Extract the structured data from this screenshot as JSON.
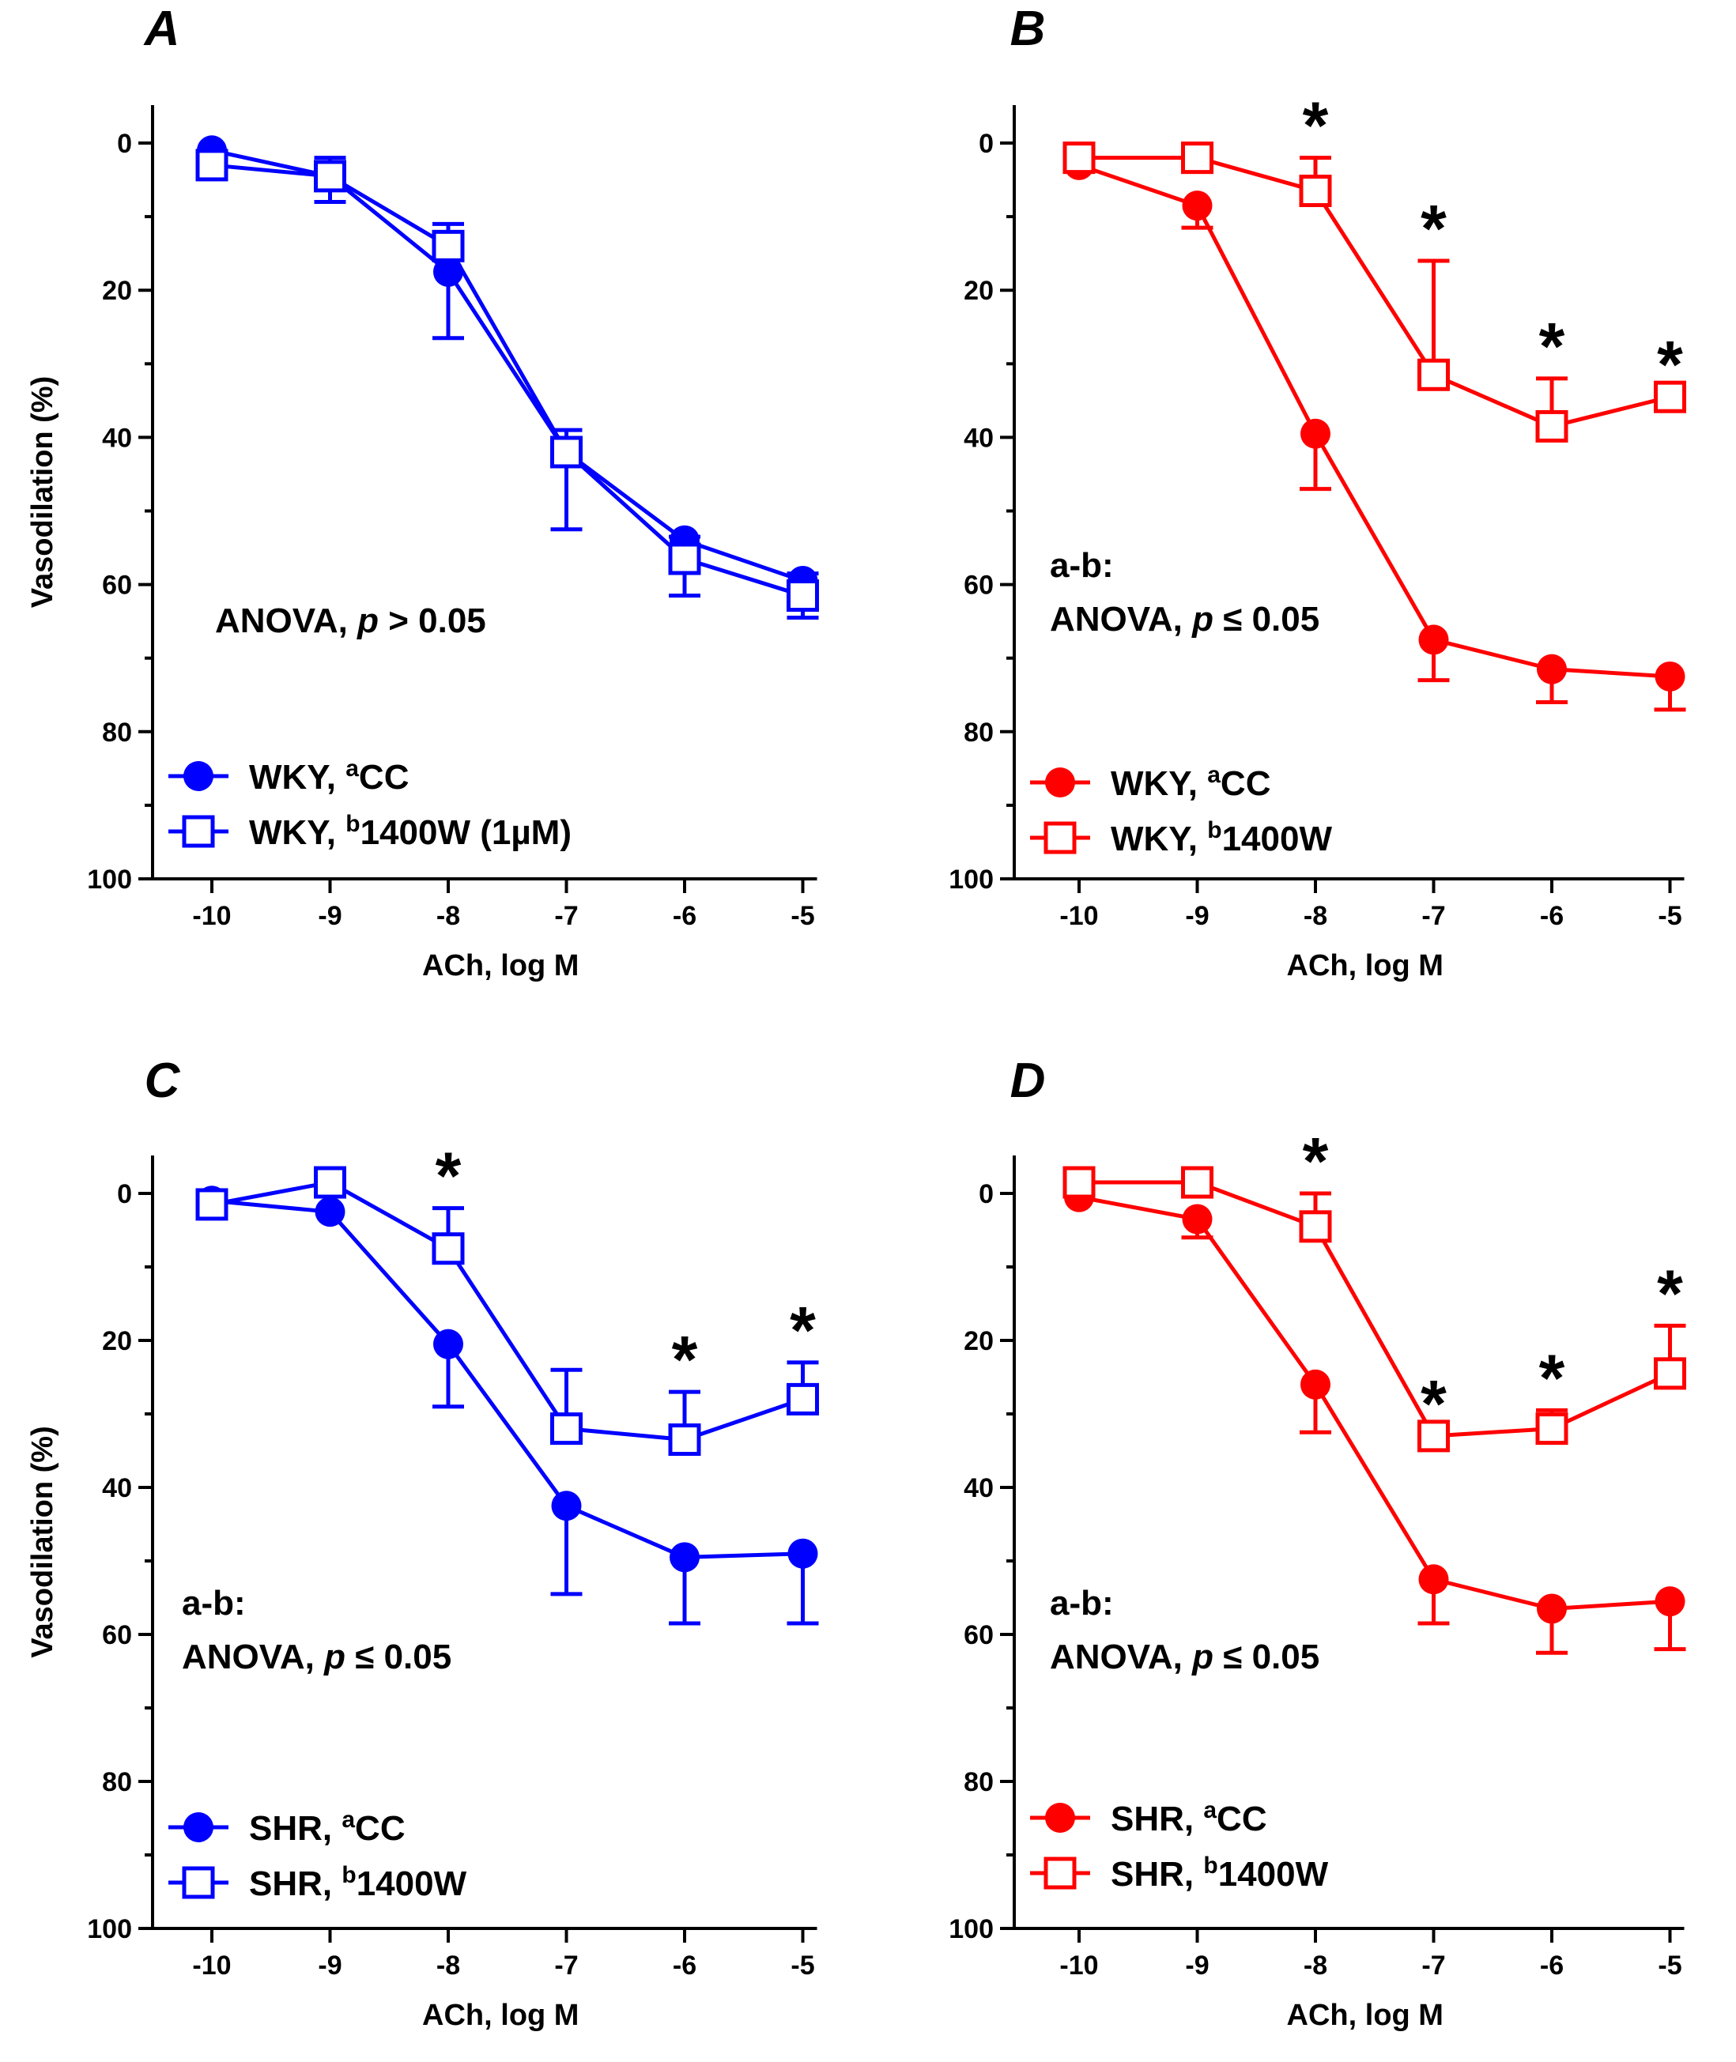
{
  "figure": {
    "ylabel": "Vasodilation (%)",
    "xlabel": "ACh, log M"
  },
  "chart_data": [
    {
      "type": "line",
      "panel": "A",
      "title": "A",
      "color": "#0000ff",
      "xlabel": "ACh, log M",
      "ylabel": "Vasodilation (%)",
      "x": [
        -10,
        -9,
        -8,
        -7,
        -6,
        -5
      ],
      "xlim": [
        -10.5,
        -4.7
      ],
      "ylim": [
        0,
        100
      ],
      "y_inverted": true,
      "x_tick_labels": [
        "-10",
        "-9",
        "-8",
        "-7",
        "-6",
        "-5"
      ],
      "y_tick_labels": [
        "0",
        "20",
        "40",
        "60",
        "80",
        "100"
      ],
      "series": [
        {
          "name": "WKY, CC",
          "superscript": "a",
          "label_main": "WKY, ",
          "label_rest": "CC",
          "marker": "filled-circle",
          "values": [
            1,
            4.5,
            17.5,
            42,
            54,
            59.5
          ],
          "error": [
            0,
            3.5,
            9,
            10.5,
            7.5,
            5
          ]
        },
        {
          "name": "WKY, 1400W (1µM)",
          "superscript": "b",
          "label_main": "WKY, ",
          "label_rest": "1400W (1µM)",
          "marker": "open-square",
          "values": [
            3,
            4.5,
            14,
            42,
            56.5,
            61.5
          ],
          "error": [
            0,
            2.5,
            3,
            3,
            3,
            3
          ]
        }
      ],
      "significance": [],
      "annotation": {
        "prefix": "",
        "line1": "ANOVA, ",
        "italic": "p",
        "line2": " > 0.05"
      }
    },
    {
      "type": "line",
      "panel": "B",
      "title": "B",
      "color": "#ff0000",
      "xlabel": "ACh, log M",
      "ylabel": "",
      "x": [
        -10,
        -9,
        -8,
        -7,
        -6,
        -5
      ],
      "xlim": [
        -10.5,
        -4.7
      ],
      "ylim": [
        0,
        100
      ],
      "y_inverted": true,
      "x_tick_labels": [
        "-10",
        "-9",
        "-8",
        "-7",
        "-6",
        "-5"
      ],
      "y_tick_labels": [
        "0",
        "20",
        "40",
        "60",
        "80",
        "100"
      ],
      "series": [
        {
          "name": "WKY, CC",
          "superscript": "a",
          "label_main": "WKY, ",
          "label_rest": "CC",
          "marker": "filled-circle",
          "values": [
            3,
            8.5,
            39.5,
            67.5,
            71.5,
            72.5
          ],
          "error": [
            0,
            3,
            7.5,
            5.5,
            4.5,
            4.5
          ]
        },
        {
          "name": "WKY, 1400W",
          "superscript": "b",
          "label_main": "WKY, ",
          "label_rest": "1400W",
          "marker": "open-square",
          "values": [
            2,
            2,
            6.5,
            31.5,
            38.5,
            34.5
          ],
          "error": [
            0,
            0,
            4.5,
            15.5,
            6.5,
            0
          ]
        }
      ],
      "significance": [
        -8,
        -7,
        -6,
        -5
      ],
      "annotation": {
        "prefix": "a-b:",
        "line1": "ANOVA, ",
        "italic": "p",
        "line2": " ≤ 0.05"
      }
    },
    {
      "type": "line",
      "panel": "C",
      "title": "C",
      "color": "#0000ff",
      "xlabel": "ACh, log M",
      "ylabel": "Vasodilation (%)",
      "x": [
        -10,
        -9,
        -8,
        -7,
        -6,
        -5
      ],
      "xlim": [
        -10.5,
        -4.7
      ],
      "ylim": [
        0,
        100
      ],
      "y_inverted": true,
      "x_tick_labels": [
        "-10",
        "-9",
        "-8",
        "-7",
        "-6",
        "-5"
      ],
      "y_tick_labels": [
        "0",
        "20",
        "40",
        "60",
        "80",
        "100"
      ],
      "series": [
        {
          "name": "SHR, CC",
          "superscript": "a",
          "label_main": "SHR, ",
          "label_rest": "CC",
          "marker": "filled-circle",
          "values": [
            1,
            2.5,
            20.5,
            42.5,
            49.5,
            49
          ],
          "error": [
            0,
            0,
            8.5,
            12,
            9,
            9.5
          ]
        },
        {
          "name": "SHR, 1400W",
          "superscript": "b",
          "label_main": "SHR, ",
          "label_rest": "1400W",
          "marker": "open-square",
          "values": [
            1.5,
            -1.5,
            7.5,
            32,
            33.5,
            28
          ],
          "error": [
            0,
            1.5,
            5.5,
            8,
            6.5,
            5
          ]
        }
      ],
      "significance": [
        -8,
        -6,
        -5
      ],
      "annotation": {
        "prefix": "a-b:",
        "line1": "ANOVA, ",
        "italic": "p",
        "line2": " ≤ 0.05"
      }
    },
    {
      "type": "line",
      "panel": "D",
      "title": "D",
      "color": "#ff0000",
      "xlabel": "ACh, log M",
      "ylabel": "",
      "x": [
        -10,
        -9,
        -8,
        -7,
        -6,
        -5
      ],
      "xlim": [
        -10.5,
        -4.7
      ],
      "ylim": [
        0,
        100
      ],
      "y_inverted": true,
      "x_tick_labels": [
        "-10",
        "-9",
        "-8",
        "-7",
        "-6",
        "-5"
      ],
      "y_tick_labels": [
        "0",
        "20",
        "40",
        "60",
        "80",
        "100"
      ],
      "series": [
        {
          "name": "SHR, CC",
          "superscript": "a",
          "label_main": "SHR, ",
          "label_rest": "CC",
          "marker": "filled-circle",
          "values": [
            0.5,
            3.5,
            26,
            52.5,
            56.5,
            55.5
          ],
          "error": [
            0,
            2.5,
            6.5,
            6,
            6,
            6.5
          ]
        },
        {
          "name": "SHR, 1400W",
          "superscript": "b",
          "label_main": "SHR, ",
          "label_rest": "1400W",
          "marker": "open-square",
          "values": [
            -1.5,
            -1.5,
            4.5,
            33,
            32,
            24.5
          ],
          "error": [
            0,
            0,
            4.5,
            0,
            2.5,
            6.5
          ]
        }
      ],
      "significance": [
        -8,
        -7,
        -6,
        -5
      ],
      "annotation": {
        "prefix": "a-b:",
        "line1": "ANOVA, ",
        "italic": "p",
        "line2": " ≤ 0.05"
      }
    }
  ]
}
